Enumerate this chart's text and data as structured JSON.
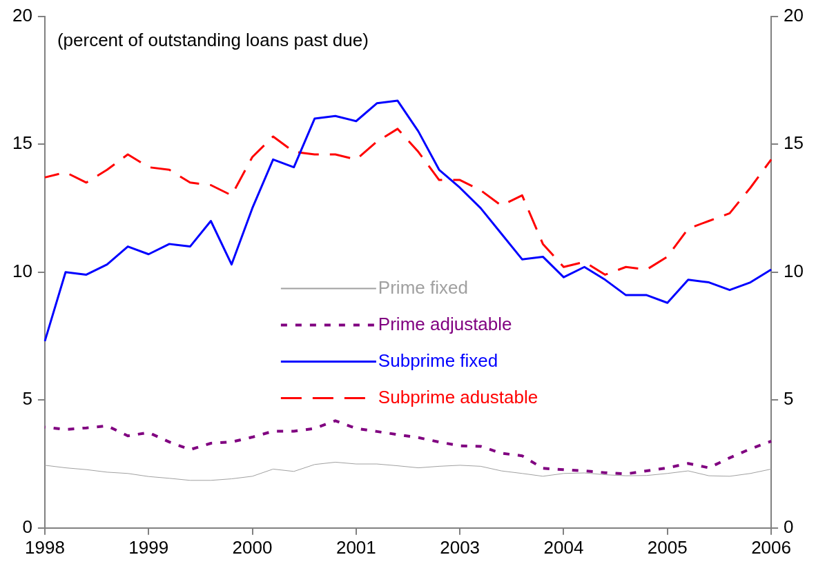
{
  "chart_data": {
    "type": "line",
    "categories": [
      "1998",
      null,
      null,
      null,
      null,
      "1999",
      null,
      null,
      null,
      null,
      "2000",
      null,
      null,
      null,
      null,
      "2001",
      null,
      null,
      null,
      null,
      "2003",
      null,
      null,
      null,
      null,
      "2004",
      null,
      null,
      null,
      null,
      "2005",
      null,
      null,
      null,
      null,
      "2006"
    ],
    "series": [
      {
        "name": "Prime fixed",
        "color": "#a0a0a0",
        "line_style": "solid",
        "values": [
          2.45,
          2.35,
          2.28,
          2.18,
          2.13,
          2.01,
          1.94,
          1.86,
          1.86,
          1.92,
          2.02,
          2.3,
          2.21,
          2.48,
          2.57,
          2.5,
          2.5,
          2.43,
          2.35,
          2.41,
          2.45,
          2.41,
          2.23,
          2.13,
          2.02,
          2.13,
          2.15,
          2.08,
          2.04,
          2.05,
          2.13,
          2.23,
          2.04,
          2.02,
          2.13,
          2.3
        ]
      },
      {
        "name": "Prime adjustable",
        "color": "#800080",
        "line_style": "dotted",
        "values": [
          3.94,
          3.85,
          3.91,
          3.99,
          3.6,
          3.73,
          3.36,
          3.06,
          3.31,
          3.36,
          3.55,
          3.78,
          3.78,
          3.89,
          4.19,
          3.89,
          3.77,
          3.65,
          3.53,
          3.36,
          3.21,
          3.19,
          2.92,
          2.82,
          2.33,
          2.28,
          2.23,
          2.16,
          2.11,
          2.23,
          2.35,
          2.52,
          2.35,
          2.74,
          3.09,
          3.39
        ]
      },
      {
        "name": "Subprime fixed",
        "color": "#0000ff",
        "line_style": "solid",
        "values": [
          7.3,
          10.0,
          9.9,
          10.3,
          11.0,
          10.7,
          11.1,
          11.0,
          12.0,
          10.3,
          12.5,
          14.4,
          14.1,
          16.0,
          16.1,
          15.9,
          16.6,
          16.7,
          15.5,
          14.0,
          13.3,
          12.5,
          11.5,
          10.5,
          10.6,
          9.8,
          10.2,
          9.7,
          9.1,
          9.1,
          8.8,
          9.7,
          9.6,
          9.3,
          9.6,
          10.1
        ]
      },
      {
        "name": "Subprime adustable",
        "color": "#ff0000",
        "line_style": "dashed",
        "values": [
          13.7,
          13.9,
          13.5,
          14.0,
          14.6,
          14.1,
          14.0,
          13.5,
          13.4,
          13.0,
          14.5,
          15.3,
          14.7,
          14.6,
          14.6,
          14.4,
          15.1,
          15.6,
          14.7,
          13.6,
          13.6,
          13.2,
          12.6,
          13.0,
          11.1,
          10.2,
          10.4,
          9.9,
          10.2,
          10.1,
          10.6,
          11.7,
          12.0,
          12.3,
          13.3,
          14.4
        ]
      }
    ],
    "ylim": [
      0,
      20
    ],
    "yticks": [
      0,
      5,
      10,
      15,
      20
    ],
    "y2lim": [
      0,
      20
    ],
    "y2ticks": [
      0,
      5,
      10,
      15,
      20
    ],
    "annotations": [
      "(percent of outstanding loans past due)"
    ],
    "legend": "center",
    "grid": false,
    "marker": "none"
  }
}
